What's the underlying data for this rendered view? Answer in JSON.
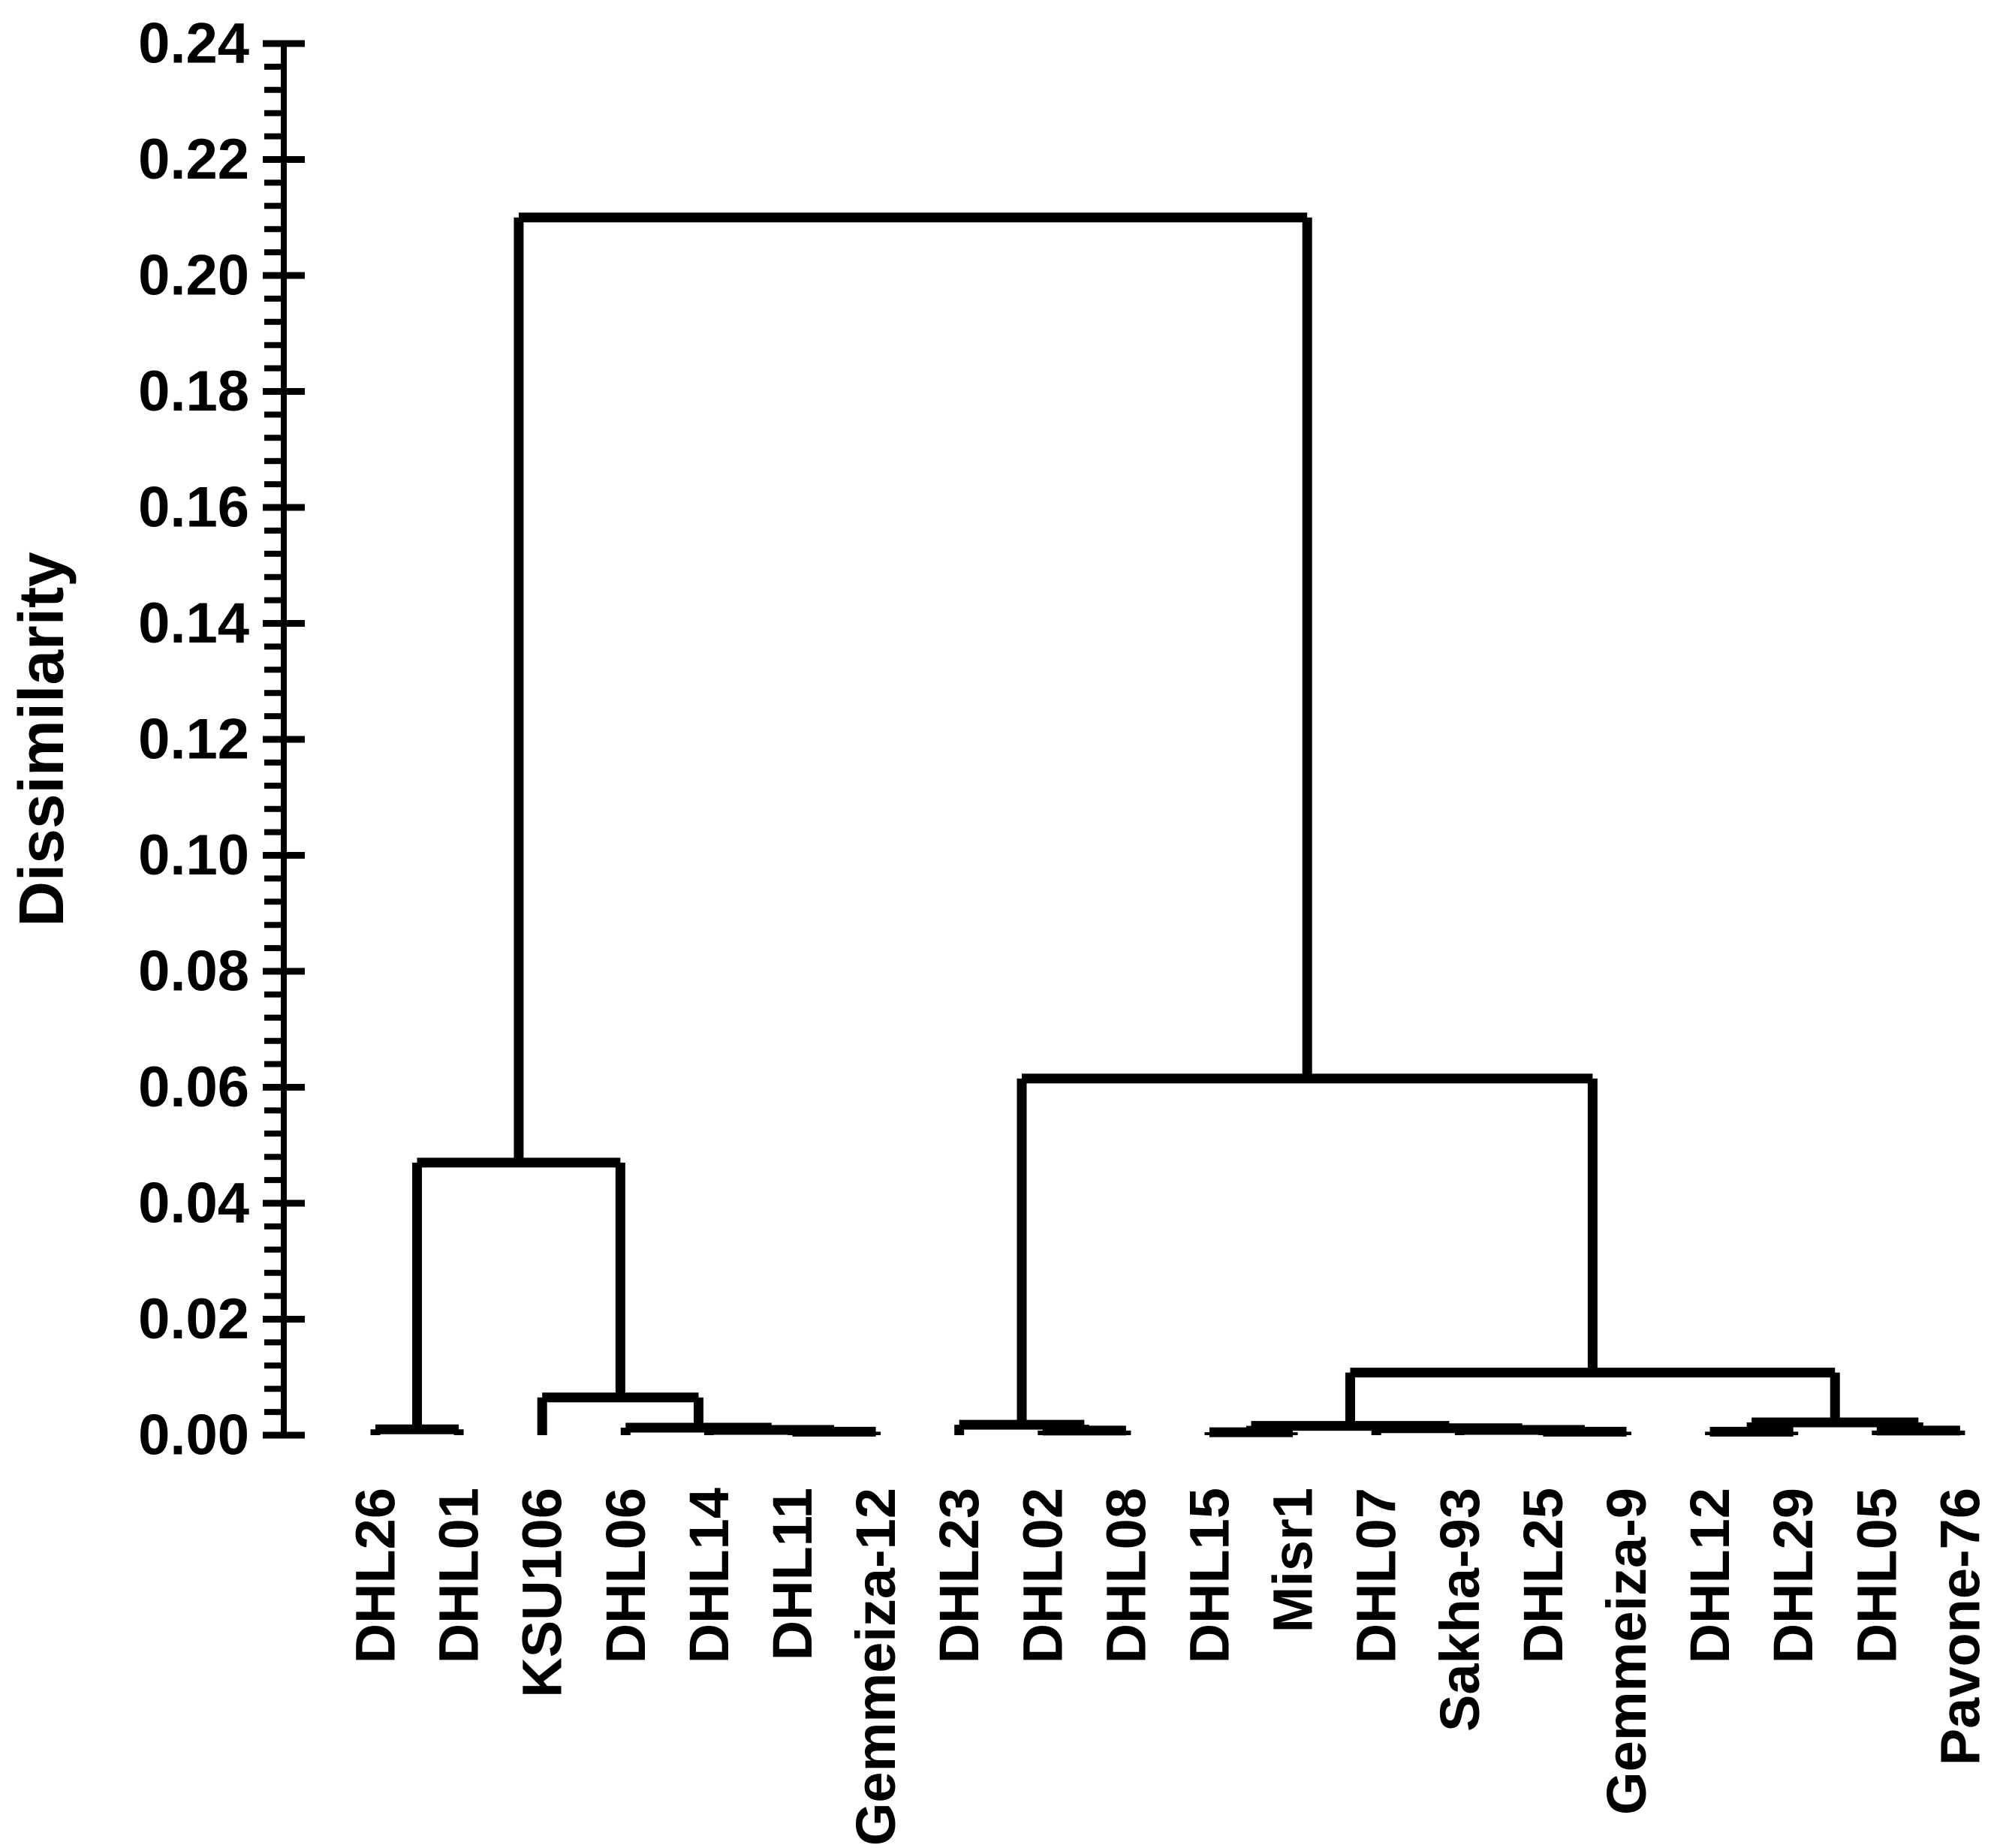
{
  "figure": {
    "background": "#ffffff",
    "line_color": "#000000",
    "text_color": "#000000"
  },
  "chart_data": {
    "type": "dendrogram",
    "title": "",
    "xlabel": "",
    "ylabel": "Dissimilarity",
    "ylim": [
      0,
      0.24
    ],
    "ytick_step": 0.02,
    "yminor_step": 0.004,
    "ytick_labels": [
      "0.00",
      "0.02",
      "0.04",
      "0.06",
      "0.08",
      "0.10",
      "0.12",
      "0.14",
      "0.16",
      "0.18",
      "0.20",
      "0.22",
      "0.24"
    ],
    "grid": "off",
    "legend": "none",
    "orientation": "vertical",
    "leaves": [
      "DHL26",
      "DHL01",
      "KSU106",
      "DHL06",
      "DHL14",
      "DHL11",
      "Gemmeiza-12",
      "DHL23",
      "DHL02",
      "DHL08",
      "DHL15",
      "Misr1",
      "DHL07",
      "Sakha-93",
      "DHL25",
      "Gemmeiza-9",
      "DHL12",
      "DHL29",
      "DHL05",
      "Pavone-76"
    ],
    "tree": {
      "h": 0.21,
      "children": [
        {
          "h": 0.047,
          "children": [
            {
              "h": 0.001,
              "children": [
                {
                  "leaf": "DHL26"
                },
                {
                  "leaf": "DHL01"
                }
              ]
            },
            {
              "h": 0.0065,
              "children": [
                {
                  "leaf": "KSU106"
                },
                {
                  "h": 0.0013,
                  "children": [
                    {
                      "leaf": "DHL06"
                    },
                    {
                      "h": 0.0009,
                      "children": [
                        {
                          "leaf": "DHL14"
                        },
                        {
                          "h": 0.0006,
                          "children": [
                            {
                              "leaf": "DHL11"
                            },
                            {
                              "leaf": "Gemmeiza-12"
                            }
                          ]
                        }
                      ]
                    }
                  ]
                }
              ]
            }
          ]
        },
        {
          "h": 0.0615,
          "children": [
            {
              "h": 0.0018,
              "children": [
                {
                  "leaf": "DHL23"
                },
                {
                  "h": 0.0008,
                  "children": [
                    {
                      "leaf": "DHL02"
                    },
                    {
                      "leaf": "DHL08"
                    }
                  ]
                }
              ]
            },
            {
              "h": 0.0108,
              "children": [
                {
                  "h": 0.0016,
                  "children": [
                    {
                      "h": 0.0005,
                      "children": [
                        {
                          "leaf": "DHL15"
                        },
                        {
                          "leaf": "Misr1"
                        }
                      ]
                    },
                    {
                      "h": 0.0012,
                      "children": [
                        {
                          "leaf": "DHL07"
                        },
                        {
                          "h": 0.0009,
                          "children": [
                            {
                              "leaf": "Sakha-93"
                            },
                            {
                              "h": 0.0006,
                              "children": [
                                {
                                  "leaf": "DHL25"
                                },
                                {
                                  "leaf": "Gemmeiza-9"
                                }
                              ]
                            }
                          ]
                        }
                      ]
                    }
                  ]
                },
                {
                  "h": 0.0022,
                  "children": [
                    {
                      "h": 0.0006,
                      "children": [
                        {
                          "leaf": "DHL12"
                        },
                        {
                          "leaf": "DHL29"
                        }
                      ]
                    },
                    {
                      "h": 0.0008,
                      "children": [
                        {
                          "leaf": "DHL05"
                        },
                        {
                          "leaf": "Pavone-76"
                        }
                      ]
                    }
                  ]
                }
              ]
            }
          ]
        }
      ]
    }
  }
}
